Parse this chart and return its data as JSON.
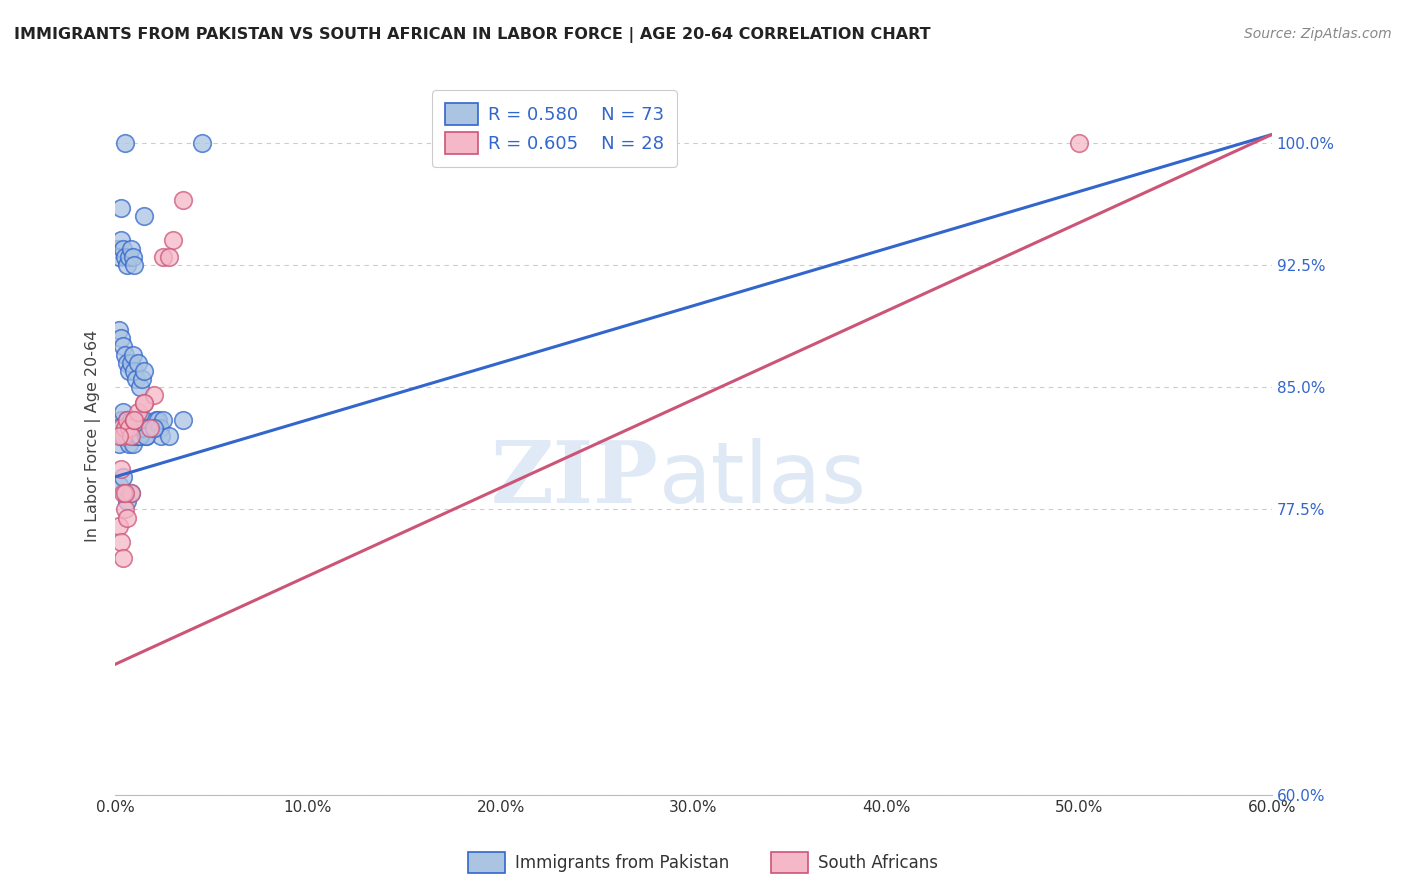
{
  "title": "IMMIGRANTS FROM PAKISTAN VS SOUTH AFRICAN IN LABOR FORCE | AGE 20-64 CORRELATION CHART",
  "source": "Source: ZipAtlas.com",
  "ylabel": "In Labor Force | Age 20-64",
  "xticklabels": [
    "0.0%",
    "10.0%",
    "20.0%",
    "30.0%",
    "40.0%",
    "50.0%",
    "60.0%"
  ],
  "xtick_vals": [
    0.0,
    10.0,
    20.0,
    30.0,
    40.0,
    50.0,
    60.0
  ],
  "ytick_vals": [
    60.0,
    77.5,
    85.0,
    92.5,
    100.0
  ],
  "yticklabels": [
    "60.0%",
    "77.5%",
    "85.0%",
    "92.5%",
    "100.0%"
  ],
  "xlim": [
    0.0,
    60.0
  ],
  "ylim": [
    60.0,
    104.0
  ],
  "legend_labels": [
    "Immigrants from Pakistan",
    "South Africans"
  ],
  "pakistan_R": "0.580",
  "pakistan_N": "73",
  "sa_R": "0.605",
  "sa_N": "28",
  "pakistan_color": "#aac4e2",
  "pakistan_line_color": "#3366cc",
  "sa_color": "#f4b8c8",
  "sa_line_color": "#cc5577",
  "pakistan_line_x0": 0.0,
  "pakistan_line_y0": 79.5,
  "pakistan_line_x1": 60.0,
  "pakistan_line_y1": 100.5,
  "sa_line_x0": 0.0,
  "sa_line_y0": 68.0,
  "sa_line_x1": 60.0,
  "sa_line_y1": 100.5,
  "pakistan_scatter_x": [
    1.8,
    4.5,
    0.3,
    0.4,
    0.5,
    0.6,
    0.7,
    0.8,
    0.9,
    1.0,
    1.1,
    1.2,
    1.3,
    1.4,
    1.5,
    1.6,
    1.7,
    1.9,
    2.0,
    2.1,
    2.2,
    2.3,
    2.4,
    2.5,
    0.2,
    0.3,
    0.4,
    0.5,
    0.6,
    0.7,
    0.8,
    0.9,
    1.0,
    1.1,
    1.2,
    1.3,
    1.4,
    1.5,
    0.1,
    0.2,
    0.3,
    0.4,
    0.5,
    0.6,
    0.7,
    0.8,
    0.9,
    1.0,
    0.1,
    0.2,
    0.3,
    0.4,
    0.5,
    0.6,
    0.7,
    0.8,
    0.9,
    1.0,
    1.1,
    1.2,
    1.3,
    1.4,
    3.5,
    0.2,
    0.4,
    0.6,
    0.8,
    2.8,
    1.6,
    2.0,
    0.5,
    1.5,
    0.3
  ],
  "pakistan_scatter_y": [
    82.5,
    100.0,
    83.0,
    83.5,
    82.5,
    83.0,
    82.5,
    83.0,
    82.5,
    82.5,
    82.5,
    83.0,
    82.5,
    83.0,
    83.0,
    82.0,
    82.5,
    82.5,
    82.5,
    83.0,
    83.0,
    82.5,
    82.0,
    83.0,
    88.5,
    88.0,
    87.5,
    87.0,
    86.5,
    86.0,
    86.5,
    87.0,
    86.0,
    85.5,
    86.5,
    85.0,
    85.5,
    86.0,
    93.5,
    93.0,
    94.0,
    93.5,
    93.0,
    92.5,
    93.0,
    93.5,
    93.0,
    92.5,
    82.5,
    81.5,
    82.0,
    82.0,
    82.5,
    82.0,
    81.5,
    82.0,
    81.5,
    82.0,
    82.5,
    82.0,
    82.0,
    82.5,
    83.0,
    79.0,
    79.5,
    78.0,
    78.5,
    82.0,
    82.0,
    82.5,
    100.0,
    95.5,
    96.0
  ],
  "sa_scatter_x": [
    0.3,
    0.4,
    0.5,
    0.6,
    0.7,
    0.8,
    1.0,
    1.2,
    1.5,
    1.8,
    2.0,
    2.5,
    3.0,
    0.2,
    0.3,
    0.4,
    0.5,
    0.6,
    0.8,
    1.0,
    1.5,
    0.2,
    0.3,
    0.4,
    0.5,
    50.0,
    3.5,
    2.8
  ],
  "sa_scatter_y": [
    82.5,
    82.0,
    82.5,
    83.0,
    82.5,
    82.0,
    83.0,
    83.5,
    84.0,
    82.5,
    84.5,
    93.0,
    94.0,
    76.5,
    75.5,
    74.5,
    77.5,
    77.0,
    78.5,
    83.0,
    84.0,
    82.0,
    80.0,
    78.5,
    78.5,
    100.0,
    96.5,
    93.0
  ],
  "watermark_zip": "ZIP",
  "watermark_atlas": "atlas",
  "background_color": "#ffffff",
  "grid_color": "#cccccc"
}
